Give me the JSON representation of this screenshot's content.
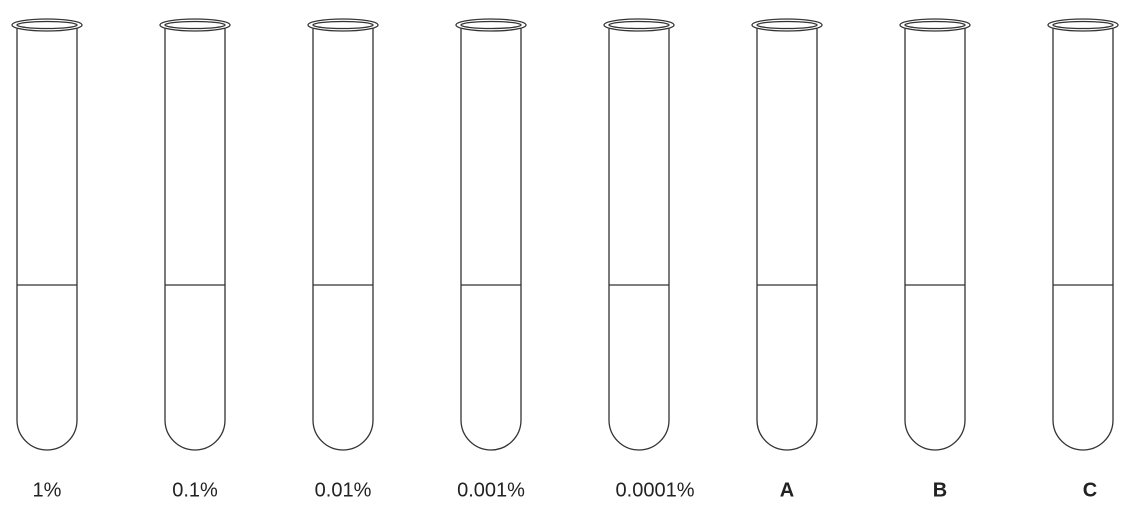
{
  "tubes": [
    {
      "label": "1%"
    },
    {
      "label": "0.1%"
    },
    {
      "label": "0.01%"
    },
    {
      "label": "0.001%"
    },
    {
      "label": "0.0001%"
    },
    {
      "label": "A"
    },
    {
      "label": "B"
    },
    {
      "label": "C"
    }
  ]
}
